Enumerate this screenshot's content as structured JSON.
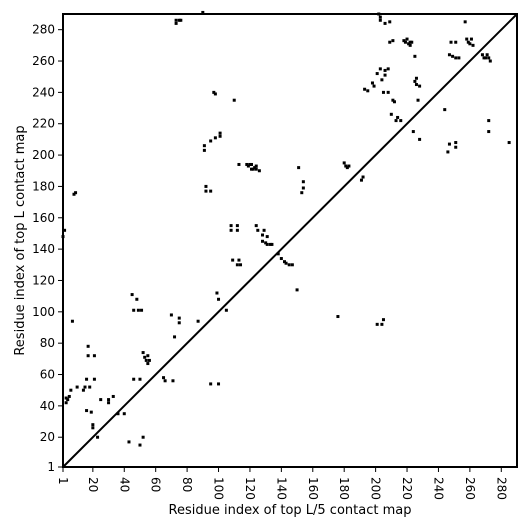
{
  "chart_data": {
    "type": "scatter",
    "title": "",
    "xlabel": "Residue index of top L/5 contact map",
    "ylabel": "Residue index of top L contact map",
    "xlim": [
      1,
      290
    ],
    "ylim": [
      1,
      290
    ],
    "xticks": [
      1,
      20,
      40,
      60,
      80,
      100,
      120,
      140,
      160,
      180,
      200,
      220,
      240,
      260,
      280
    ],
    "yticks": [
      1,
      20,
      40,
      60,
      80,
      100,
      120,
      140,
      160,
      180,
      200,
      220,
      240,
      260,
      280
    ],
    "grid": false,
    "diagonal": true,
    "marker_color": "#000000",
    "points": [
      [
        1,
        148
      ],
      [
        2,
        152
      ],
      [
        3,
        42
      ],
      [
        3,
        45
      ],
      [
        4,
        44
      ],
      [
        5,
        46
      ],
      [
        6,
        50
      ],
      [
        7,
        94
      ],
      [
        8,
        175
      ],
      [
        9,
        176
      ],
      [
        10,
        52
      ],
      [
        14,
        50
      ],
      [
        15,
        52
      ],
      [
        16,
        57
      ],
      [
        16,
        37
      ],
      [
        17,
        72
      ],
      [
        17,
        78
      ],
      [
        18,
        52
      ],
      [
        19,
        36
      ],
      [
        20,
        28
      ],
      [
        20,
        26
      ],
      [
        21,
        57
      ],
      [
        21,
        72
      ],
      [
        23,
        20
      ],
      [
        25,
        44
      ],
      [
        30,
        42
      ],
      [
        30,
        44
      ],
      [
        33,
        46
      ],
      [
        36,
        35
      ],
      [
        40,
        35
      ],
      [
        43,
        17
      ],
      [
        45,
        111
      ],
      [
        46,
        101
      ],
      [
        46,
        57
      ],
      [
        48,
        108
      ],
      [
        49,
        101
      ],
      [
        50,
        57
      ],
      [
        50,
        15
      ],
      [
        51,
        101
      ],
      [
        52,
        20
      ],
      [
        52,
        74
      ],
      [
        53,
        71
      ],
      [
        54,
        69
      ],
      [
        55,
        72
      ],
      [
        55,
        67
      ],
      [
        56,
        69
      ],
      [
        65,
        58
      ],
      [
        66,
        56
      ],
      [
        70,
        98
      ],
      [
        71,
        56
      ],
      [
        72,
        84
      ],
      [
        73,
        284
      ],
      [
        73,
        286
      ],
      [
        75,
        286
      ],
      [
        76,
        286
      ],
      [
        75,
        93
      ],
      [
        75,
        96
      ],
      [
        87,
        94
      ],
      [
        90,
        291
      ],
      [
        91,
        203
      ],
      [
        91,
        206
      ],
      [
        92,
        177
      ],
      [
        92,
        180
      ],
      [
        95,
        177
      ],
      [
        95,
        209
      ],
      [
        95,
        54
      ],
      [
        97,
        240
      ],
      [
        98,
        239
      ],
      [
        98,
        211
      ],
      [
        99,
        112
      ],
      [
        100,
        108
      ],
      [
        100,
        54
      ],
      [
        101,
        212
      ],
      [
        101,
        214
      ],
      [
        105,
        101
      ],
      [
        108,
        152
      ],
      [
        108,
        155
      ],
      [
        109,
        133
      ],
      [
        110,
        235
      ],
      [
        112,
        152
      ],
      [
        112,
        155
      ],
      [
        112,
        130
      ],
      [
        113,
        194
      ],
      [
        113,
        133
      ],
      [
        114,
        130
      ],
      [
        118,
        194
      ],
      [
        119,
        193
      ],
      [
        120,
        194
      ],
      [
        121,
        191
      ],
      [
        121,
        194
      ],
      [
        122,
        191
      ],
      [
        123,
        192
      ],
      [
        124,
        191
      ],
      [
        124,
        193
      ],
      [
        124,
        155
      ],
      [
        125,
        152
      ],
      [
        126,
        190
      ],
      [
        128,
        149
      ],
      [
        128,
        145
      ],
      [
        129,
        152
      ],
      [
        130,
        144
      ],
      [
        131,
        148
      ],
      [
        131,
        143
      ],
      [
        133,
        143
      ],
      [
        134,
        143
      ],
      [
        138,
        137
      ],
      [
        140,
        134
      ],
      [
        142,
        132
      ],
      [
        143,
        131
      ],
      [
        145,
        130
      ],
      [
        147,
        130
      ],
      [
        150,
        114
      ],
      [
        151,
        192
      ],
      [
        153,
        176
      ],
      [
        154,
        179
      ],
      [
        154,
        183
      ],
      [
        176,
        97
      ],
      [
        180,
        195
      ],
      [
        181,
        193
      ],
      [
        182,
        192
      ],
      [
        183,
        193
      ],
      [
        191,
        184
      ],
      [
        192,
        186
      ],
      [
        193,
        242
      ],
      [
        195,
        241
      ],
      [
        198,
        246
      ],
      [
        199,
        244
      ],
      [
        201,
        92
      ],
      [
        201,
        252
      ],
      [
        202,
        290
      ],
      [
        203,
        288
      ],
      [
        203,
        286
      ],
      [
        203,
        255
      ],
      [
        204,
        92
      ],
      [
        204,
        248
      ],
      [
        205,
        95
      ],
      [
        205,
        240
      ],
      [
        206,
        251
      ],
      [
        206,
        254
      ],
      [
        206,
        284
      ],
      [
        208,
        240
      ],
      [
        208,
        255
      ],
      [
        209,
        272
      ],
      [
        209,
        285
      ],
      [
        210,
        226
      ],
      [
        211,
        273
      ],
      [
        211,
        235
      ],
      [
        212,
        234
      ],
      [
        213,
        222
      ],
      [
        214,
        224
      ],
      [
        216,
        222
      ],
      [
        218,
        273
      ],
      [
        219,
        272
      ],
      [
        220,
        274
      ],
      [
        221,
        271
      ],
      [
        222,
        270
      ],
      [
        222,
        272
      ],
      [
        223,
        272
      ],
      [
        224,
        215
      ],
      [
        225,
        263
      ],
      [
        225,
        247
      ],
      [
        226,
        249
      ],
      [
        226,
        245
      ],
      [
        227,
        235
      ],
      [
        228,
        210
      ],
      [
        228,
        244
      ],
      [
        244,
        229
      ],
      [
        246,
        202
      ],
      [
        247,
        207
      ],
      [
        247,
        264
      ],
      [
        248,
        272
      ],
      [
        249,
        263
      ],
      [
        251,
        205
      ],
      [
        251,
        208
      ],
      [
        251,
        262
      ],
      [
        251,
        272
      ],
      [
        253,
        262
      ],
      [
        257,
        285
      ],
      [
        258,
        274
      ],
      [
        259,
        272
      ],
      [
        260,
        271
      ],
      [
        261,
        274
      ],
      [
        262,
        270
      ],
      [
        268,
        264
      ],
      [
        269,
        262
      ],
      [
        270,
        262
      ],
      [
        271,
        264
      ],
      [
        272,
        222
      ],
      [
        272,
        262
      ],
      [
        272,
        215
      ],
      [
        273,
        260
      ],
      [
        285,
        208
      ]
    ]
  }
}
